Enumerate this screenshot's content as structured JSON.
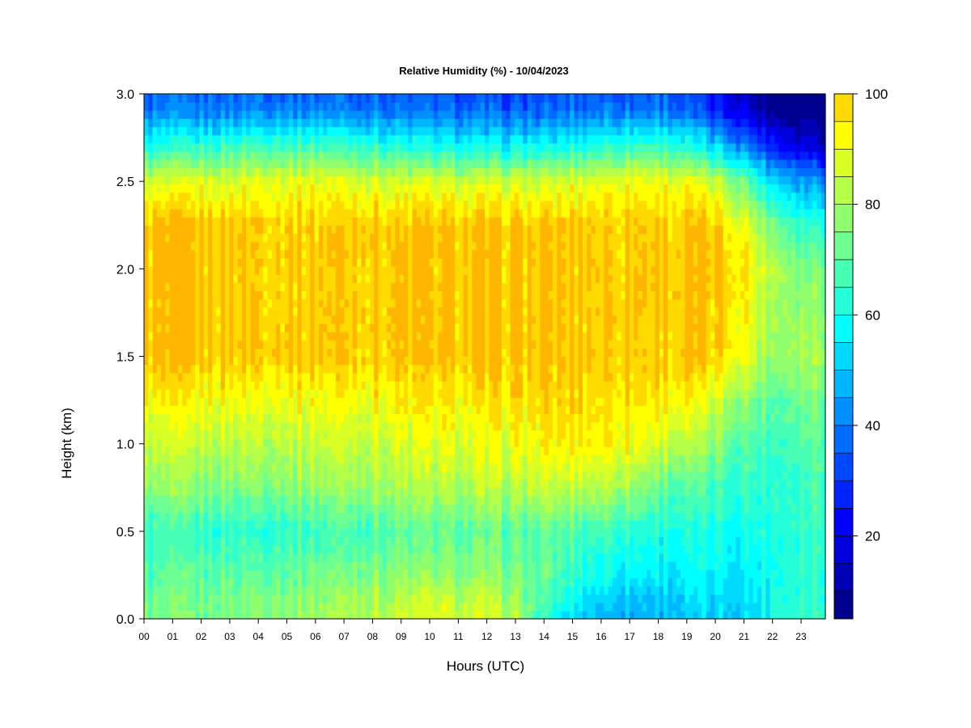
{
  "chart_data": {
    "type": "heatmap",
    "title": "Relative Humidity (%) - 10/04/2023",
    "xlabel": "Hours (UTC)",
    "ylabel": "Height (km)",
    "xlim": [
      0,
      23.85
    ],
    "ylim": [
      0.0,
      3.0
    ],
    "x_ticks": [
      "00",
      "01",
      "02",
      "03",
      "04",
      "05",
      "06",
      "07",
      "08",
      "09",
      "10",
      "11",
      "12",
      "13",
      "14",
      "15",
      "16",
      "17",
      "18",
      "19",
      "20",
      "21",
      "22",
      "23"
    ],
    "y_ticks": [
      "0.0",
      "0.5",
      "1.0",
      "1.5",
      "2.0",
      "2.5",
      "3.0"
    ],
    "colorbar": {
      "min": 5,
      "max": 100,
      "step": 5,
      "ticks": [
        "20",
        "40",
        "60",
        "80",
        "100"
      ],
      "tick_values": [
        20,
        40,
        60,
        80,
        100
      ],
      "colors": [
        "#00008f",
        "#0000b5",
        "#0000da",
        "#0000ff",
        "#0024ff",
        "#0048ff",
        "#006dff",
        "#0091ff",
        "#00b6ff",
        "#00daff",
        "#00ffff",
        "#24ffda",
        "#48ffb6",
        "#6dff91",
        "#91ff6d",
        "#b6ff48",
        "#daff24",
        "#ffff00",
        "#ffda00",
        "#ffb600",
        "#ff9100",
        "#ff6d00",
        "#ff4800",
        "#ff2400",
        "#ff0000",
        "#da0000",
        "#b60000",
        "#910000",
        "#800000"
      ]
    },
    "grid": false,
    "legend": "colorbar-right",
    "hours": [
      0,
      2,
      4,
      6,
      8,
      10,
      12,
      13,
      14,
      15,
      16,
      17,
      18,
      19,
      20,
      21,
      21.5,
      22,
      22.5,
      23,
      23.85
    ],
    "heights_km": [
      0.0,
      0.1,
      0.25,
      0.5,
      0.75,
      1.0,
      1.25,
      1.5,
      2.0,
      2.25,
      2.5,
      2.7,
      2.9,
      3.0
    ],
    "values": [
      [
        72,
        74,
        76,
        78,
        84,
        88,
        86,
        82,
        62,
        52,
        48,
        46,
        48,
        50,
        50,
        52,
        56,
        62,
        66,
        68,
        68
      ],
      [
        72,
        74,
        76,
        78,
        82,
        85,
        84,
        80,
        66,
        58,
        52,
        50,
        50,
        52,
        52,
        54,
        56,
        60,
        62,
        64,
        64
      ],
      [
        68,
        70,
        72,
        74,
        76,
        78,
        76,
        74,
        70,
        64,
        60,
        58,
        56,
        56,
        56,
        56,
        58,
        60,
        62,
        64,
        64
      ],
      [
        64,
        64,
        64,
        66,
        68,
        70,
        70,
        70,
        70,
        68,
        66,
        64,
        62,
        60,
        60,
        60,
        62,
        62,
        64,
        66,
        66
      ],
      [
        76,
        76,
        76,
        78,
        80,
        82,
        82,
        82,
        84,
        84,
        84,
        80,
        72,
        68,
        66,
        64,
        64,
        64,
        66,
        68,
        68
      ],
      [
        84,
        84,
        84,
        85,
        86,
        88,
        88,
        90,
        92,
        94,
        94,
        92,
        88,
        82,
        76,
        70,
        68,
        66,
        68,
        70,
        70
      ],
      [
        92,
        92,
        92,
        92,
        93,
        94,
        94,
        96,
        97,
        98,
        98,
        97,
        96,
        92,
        86,
        78,
        74,
        70,
        72,
        74,
        74
      ],
      [
        100,
        100,
        100,
        100,
        100,
        100,
        100,
        100,
        100,
        100,
        100,
        100,
        100,
        100,
        98,
        92,
        84,
        78,
        80,
        82,
        82
      ],
      [
        100,
        100,
        100,
        100,
        100,
        100,
        100,
        100,
        100,
        100,
        100,
        100,
        100,
        100,
        100,
        96,
        88,
        84,
        80,
        76,
        76
      ],
      [
        100,
        100,
        100,
        100,
        100,
        100,
        100,
        100,
        100,
        100,
        100,
        100,
        100,
        100,
        98,
        92,
        84,
        76,
        70,
        66,
        64
      ],
      [
        86,
        88,
        90,
        90,
        88,
        86,
        86,
        86,
        86,
        88,
        90,
        92,
        92,
        90,
        84,
        74,
        62,
        54,
        50,
        46,
        44
      ],
      [
        60,
        64,
        68,
        68,
        64,
        60,
        58,
        58,
        58,
        60,
        64,
        66,
        66,
        62,
        52,
        42,
        34,
        28,
        24,
        20,
        18
      ],
      [
        40,
        40,
        42,
        42,
        40,
        38,
        36,
        36,
        36,
        38,
        40,
        40,
        40,
        36,
        28,
        20,
        14,
        10,
        8,
        6,
        6
      ],
      [
        36,
        36,
        38,
        38,
        36,
        34,
        32,
        32,
        32,
        34,
        36,
        36,
        36,
        32,
        24,
        16,
        10,
        8,
        6,
        5,
        5
      ]
    ]
  }
}
